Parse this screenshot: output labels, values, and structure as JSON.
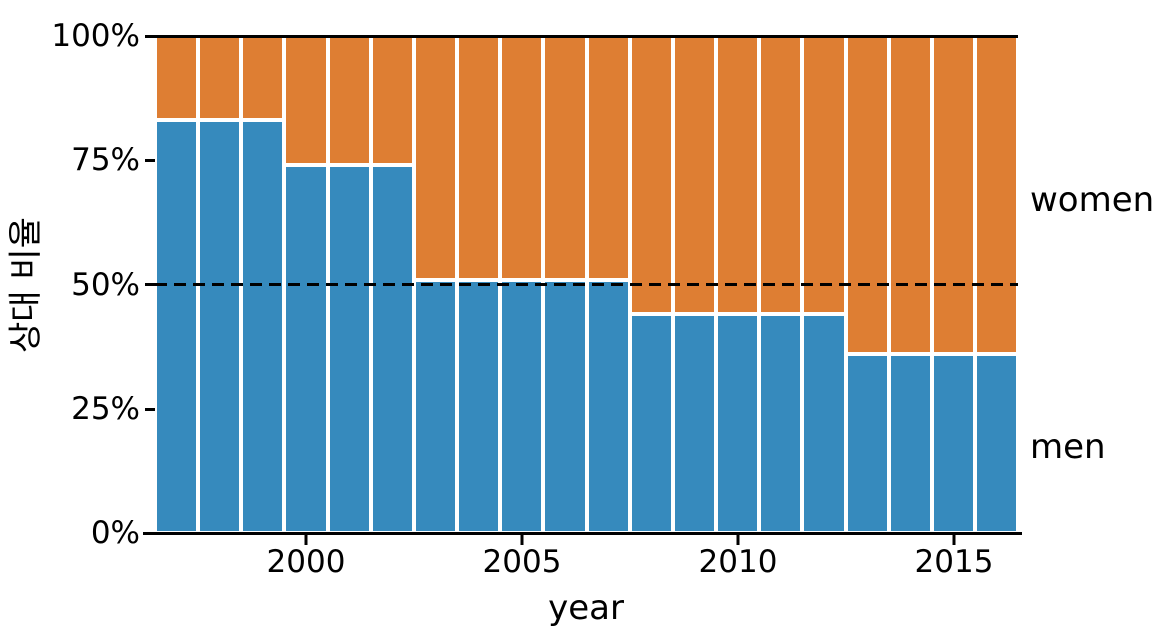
{
  "figure": {
    "background": "#ffffff",
    "ylabel": "상대 비율",
    "xlabel": "year",
    "ytick_labels": [
      "100%",
      "75%",
      "50%",
      "25%",
      "0%"
    ],
    "xtick_labels": [
      "2000",
      "2005",
      "2010",
      "2015"
    ],
    "right_labels": {
      "women": "women",
      "men": "men"
    }
  },
  "chart_data": {
    "type": "bar",
    "subtype": "stacked-100-percent-column",
    "title": "",
    "xlabel": "year",
    "ylabel": "상대 비율",
    "x": [
      1997,
      1998,
      1999,
      2000,
      2001,
      2002,
      2003,
      2004,
      2005,
      2006,
      2007,
      2008,
      2009,
      2010,
      2011,
      2012,
      2013,
      2014,
      2015,
      2016
    ],
    "series": [
      {
        "name": "men",
        "color": "#368abd",
        "values": [
          83,
          83,
          83,
          74,
          74,
          74,
          51,
          51,
          51,
          51,
          51,
          44,
          44,
          44,
          44,
          44,
          36,
          36,
          36,
          36
        ]
      },
      {
        "name": "women",
        "color": "#de7e33",
        "values": [
          17,
          17,
          17,
          26,
          26,
          26,
          49,
          49,
          49,
          49,
          49,
          56,
          56,
          56,
          56,
          56,
          64,
          64,
          64,
          64
        ]
      }
    ],
    "ylim": [
      0,
      100
    ],
    "yticks": [
      0,
      25,
      50,
      75,
      100
    ],
    "xticks": [
      2000,
      2005,
      2010,
      2015
    ],
    "grid": false,
    "bar_edge_color": "#ffffff",
    "legend_position": "right-margin-text (women top, men bottom)",
    "reference_lines": [
      {
        "value": 100,
        "style": "solid",
        "color": "#000000"
      },
      {
        "value": 50,
        "style": "dashed",
        "color": "#000000"
      }
    ]
  }
}
